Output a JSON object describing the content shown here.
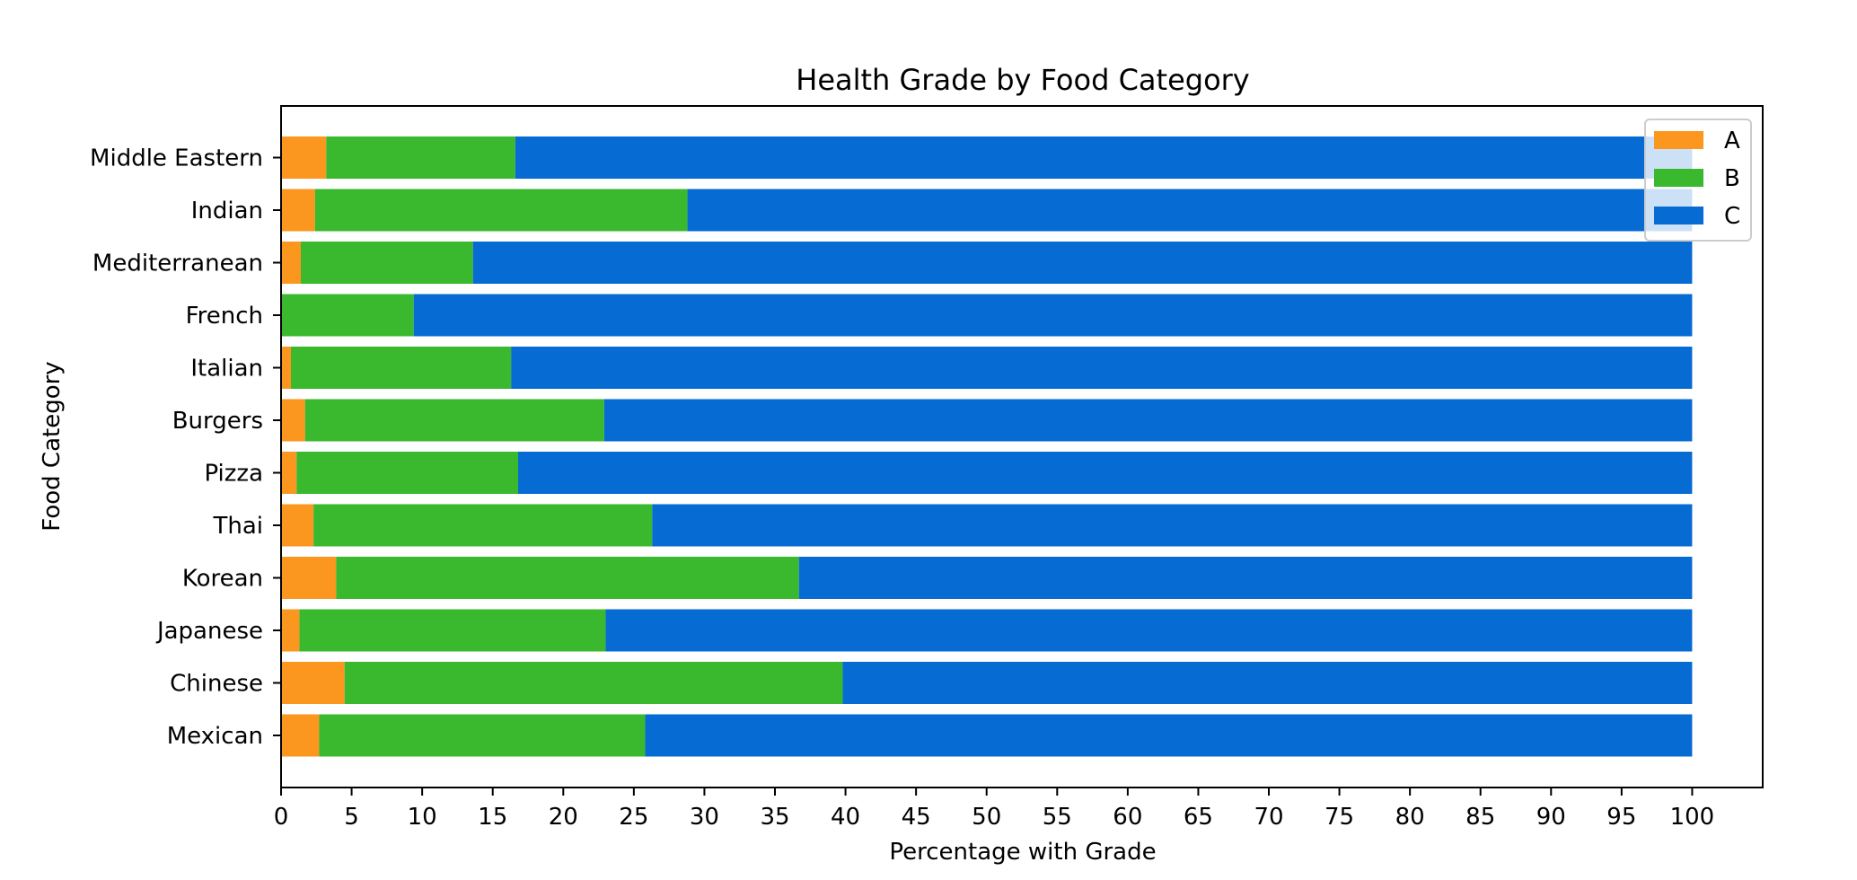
{
  "chart_data": {
    "type": "bar",
    "orientation": "horizontal",
    "stacked": true,
    "title": "Health Grade by Food Category",
    "xlabel": "Percentage with Grade",
    "ylabel": "Food Category",
    "xlim": [
      0,
      105
    ],
    "xticks": [
      0,
      5,
      10,
      15,
      20,
      25,
      30,
      35,
      40,
      45,
      50,
      55,
      60,
      65,
      70,
      75,
      80,
      85,
      90,
      95,
      100
    ],
    "categories": [
      "Mexican",
      "Chinese",
      "Japanese",
      "Korean",
      "Thai",
      "Pizza",
      "Burgers",
      "Italian",
      "French",
      "Mediterranean",
      "Indian",
      "Middle Eastern"
    ],
    "series": [
      {
        "name": "A",
        "color": "#fb961f",
        "values": [
          2.7,
          4.5,
          1.3,
          3.9,
          2.3,
          1.1,
          1.7,
          0.7,
          0.0,
          1.4,
          2.4,
          3.2
        ]
      },
      {
        "name": "B",
        "color": "#3ab82e",
        "values": [
          23.1,
          35.3,
          21.7,
          32.8,
          24.0,
          15.7,
          21.2,
          15.6,
          9.4,
          12.2,
          26.4,
          13.4
        ]
      },
      {
        "name": "C",
        "color": "#066bd3",
        "values": [
          74.2,
          60.2,
          77.0,
          63.3,
          73.7,
          83.2,
          77.1,
          83.7,
          90.6,
          86.4,
          71.2,
          83.4
        ]
      }
    ],
    "grid": false,
    "legend_position": "top-right"
  }
}
